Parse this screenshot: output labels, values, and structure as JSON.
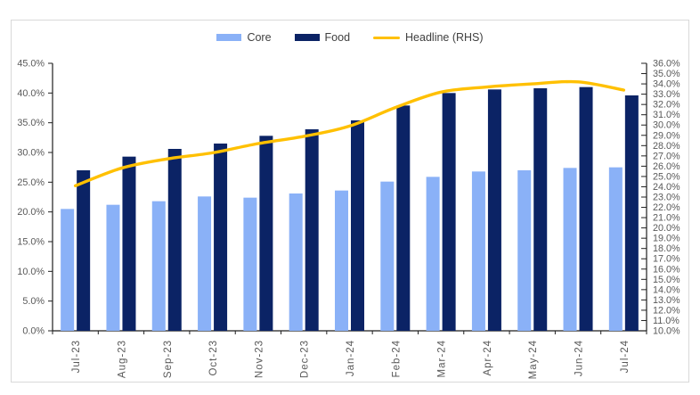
{
  "chart_data": {
    "type": "bar",
    "subtype": "grouped bars with secondary-axis line",
    "categories": [
      "Jul-23",
      "Aug-23",
      "Sep-23",
      "Oct-23",
      "Nov-23",
      "Dec-23",
      "Jan-24",
      "Feb-24",
      "Mar-24",
      "Apr-24",
      "May-24",
      "Jun-24",
      "Jul-24"
    ],
    "series": [
      {
        "name": "Core",
        "type": "bar",
        "axis": "left",
        "color": "#8AB1F7",
        "values": [
          20.5,
          21.2,
          21.8,
          22.6,
          22.4,
          23.1,
          23.6,
          25.1,
          25.9,
          26.8,
          27.0,
          27.4,
          27.5
        ]
      },
      {
        "name": "Food",
        "type": "bar",
        "axis": "left",
        "color": "#0B2365",
        "values": [
          27.0,
          29.3,
          30.6,
          31.5,
          32.8,
          33.9,
          35.4,
          37.9,
          40.0,
          40.6,
          40.8,
          41.0,
          39.6
        ]
      },
      {
        "name": "Headline (RHS)",
        "type": "line",
        "axis": "right",
        "color": "#FFC000",
        "values": [
          24.1,
          25.8,
          26.7,
          27.3,
          28.2,
          28.9,
          29.9,
          31.7,
          33.2,
          33.7,
          34.0,
          34.2,
          33.4
        ]
      }
    ],
    "title": "",
    "xlabel": "",
    "ylabel": "",
    "left_axis": {
      "min": 0,
      "max": 45,
      "step": 5,
      "tick_format": "0.0%"
    },
    "right_axis": {
      "min": 10,
      "max": 36,
      "step": 1,
      "tick_format": "0.0%"
    },
    "legend_position": "top",
    "grid": false,
    "unit": "percent"
  },
  "styles": {
    "axis_line_color": "#1f1f1f",
    "tick_label_color": "#595959",
    "legend_text_color": "#404040",
    "card_border_color": "#d9d9d9",
    "background_color": "#ffffff"
  }
}
